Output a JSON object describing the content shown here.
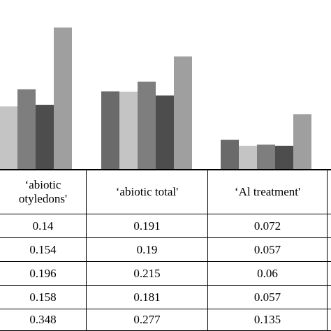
{
  "chart_data": {
    "type": "bar",
    "categories": [
      "'abiotic cotyledons'",
      "'abiotic total'",
      "'Al treatment'"
    ],
    "series": [
      {
        "values": [
          0.14,
          0.191,
          0.072
        ],
        "color": "#6a6a6a"
      },
      {
        "values": [
          0.154,
          0.19,
          0.057
        ],
        "color": "#c4c4c4"
      },
      {
        "values": [
          0.196,
          0.215,
          0.06
        ],
        "color": "#7e7e7e"
      },
      {
        "values": [
          0.158,
          0.181,
          0.057
        ],
        "color": "#4d4d4d"
      },
      {
        "values": [
          0.348,
          0.277,
          0.135
        ],
        "color": "#9f9f9f"
      }
    ],
    "grid": false,
    "legend": "none"
  },
  "table": {
    "headers": [
      {
        "line1": "‘abiotic",
        "line2": "otyledons'"
      },
      {
        "line1": "‘abiotic total'",
        "line2": ""
      },
      {
        "line1": "‘Al treatment'",
        "line2": ""
      }
    ],
    "rows": [
      [
        "0.14",
        "0.191",
        "0.072"
      ],
      [
        "0.154",
        "0.19",
        "0.057"
      ],
      [
        "0.196",
        "0.215",
        "0.06"
      ],
      [
        "0.158",
        "0.181",
        "0.057"
      ],
      [
        "0.348",
        "0.277",
        "0.135"
      ]
    ]
  }
}
